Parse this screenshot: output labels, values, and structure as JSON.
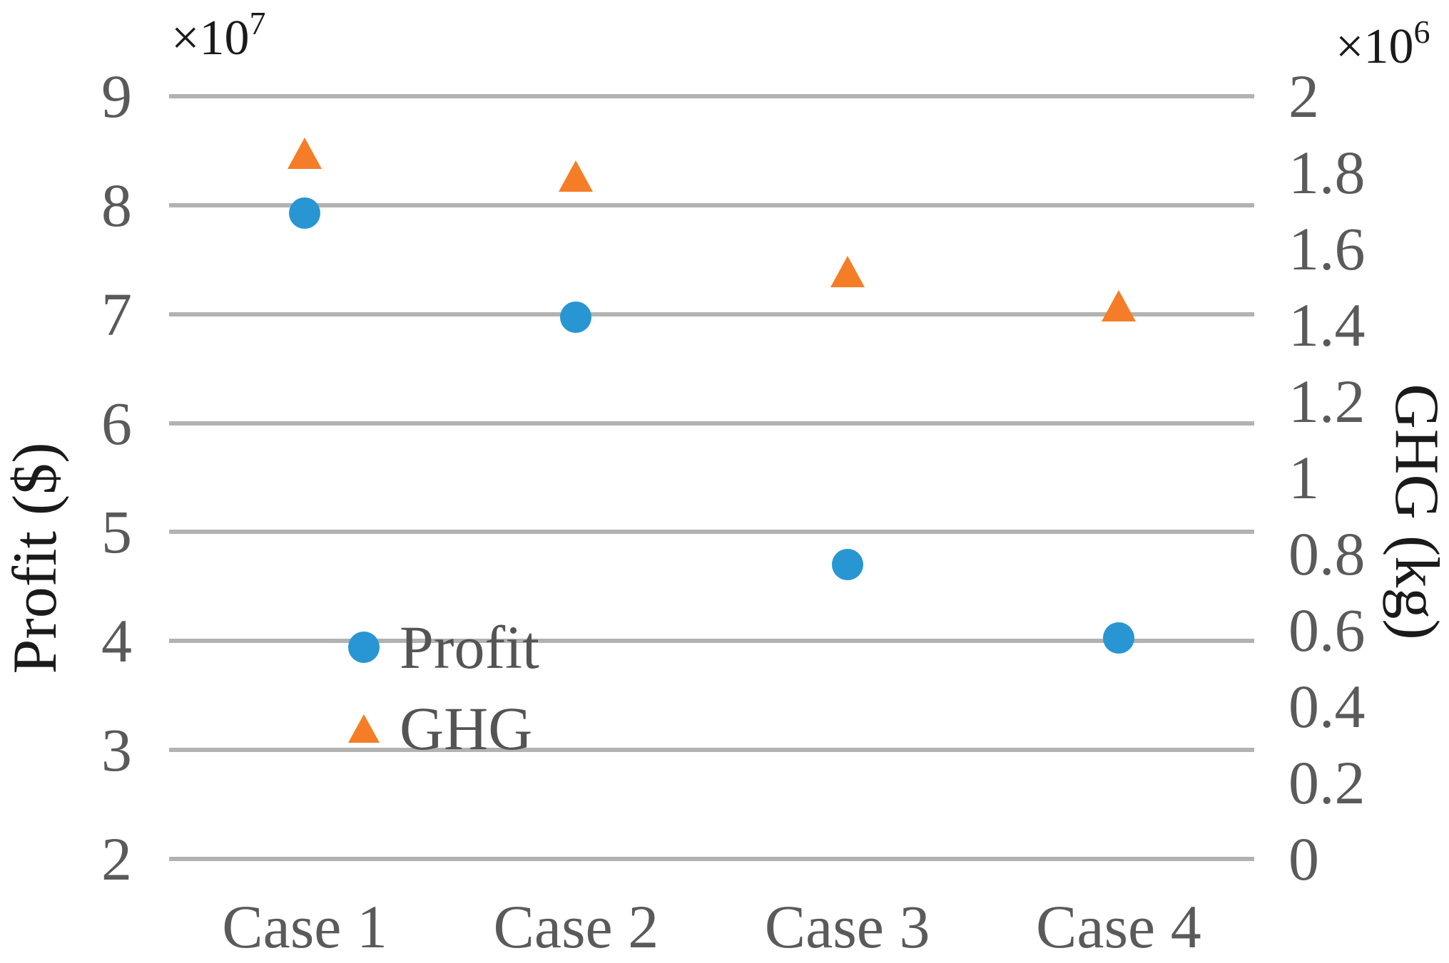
{
  "chart_data": {
    "type": "scatter",
    "categories": [
      "Case 1",
      "Case 2",
      "Case 3",
      "Case 4"
    ],
    "series": [
      {
        "name": "Profit",
        "axis": "left",
        "marker": "circle",
        "color": "#2896d2",
        "values": [
          7.93,
          6.97,
          4.7,
          4.03
        ],
        "unit": "x10^7 $"
      },
      {
        "name": "GHG",
        "axis": "right",
        "marker": "triangle",
        "color": "#f57d28",
        "values": [
          1.85,
          1.79,
          1.54,
          1.45
        ],
        "unit": "x10^6 kg"
      }
    ],
    "left_axis": {
      "label": "Profit ($)",
      "multiplier_prefix": "×10",
      "multiplier_exponent": "7",
      "ticks": [
        9,
        8,
        7,
        6,
        5,
        4,
        3,
        2
      ],
      "range": [
        2,
        9
      ],
      "grid": true
    },
    "right_axis": {
      "label": "GHG (kg)",
      "multiplier_prefix": "×10",
      "multiplier_exponent": "6",
      "ticks": [
        2,
        1.8,
        1.6,
        1.4,
        1.2,
        1,
        0.8,
        0.6,
        0.4,
        0.2,
        0
      ],
      "range": [
        0,
        2
      ],
      "grid": false
    },
    "legend": {
      "position": "inside-lower-left",
      "items": [
        {
          "label": "Profit",
          "marker": "circle",
          "color": "#2896d2"
        },
        {
          "label": "GHG",
          "marker": "triangle",
          "color": "#f57d28"
        }
      ]
    },
    "title": "",
    "grid_on": true
  },
  "colors": {
    "background": "#ffffff",
    "gridline": "#b2b2b2",
    "tick_label": "#5a5a5a",
    "axis_title": "#1a1a1a",
    "profit_marker": "#2896d2",
    "ghg_marker": "#f57d28"
  }
}
